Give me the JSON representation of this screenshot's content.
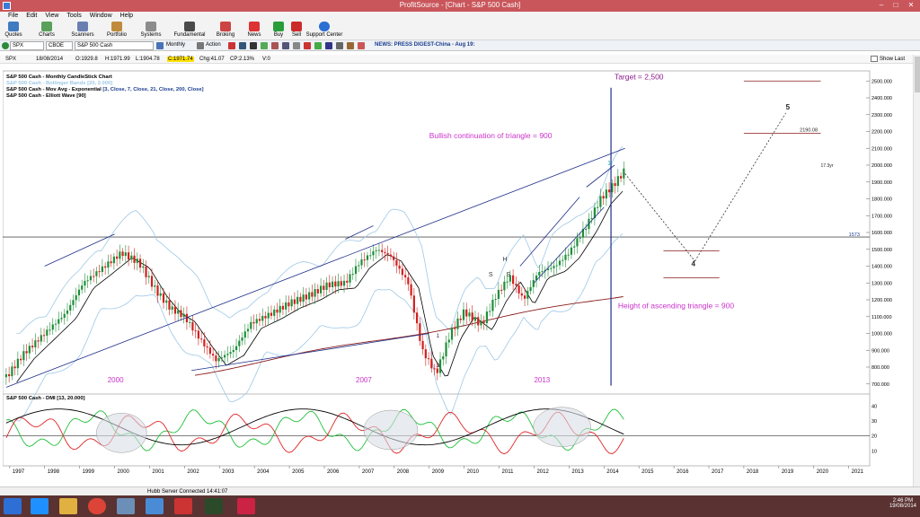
{
  "window": {
    "title": "ProfitSource - [Chart - S&P 500 Cash]",
    "icon": "profitsource-icon"
  },
  "menu": [
    "File",
    "Edit",
    "View",
    "Tools",
    "Window",
    "Help"
  ],
  "toolbar": [
    {
      "label": "Quotes",
      "icon": "quotes-icon"
    },
    {
      "label": "Charts",
      "icon": "charts-icon"
    },
    {
      "label": "Scanners",
      "icon": "scanners-icon"
    },
    {
      "label": "Portfolio",
      "icon": "portfolio-icon"
    },
    {
      "label": "Systems",
      "icon": "systems-icon"
    },
    {
      "label": "Fundamental",
      "icon": "fundamental-icon"
    },
    {
      "label": "Broking",
      "icon": "broking-icon"
    },
    {
      "label": "News",
      "icon": "news-icon"
    },
    {
      "label": "Buy",
      "icon": "buy-icon"
    },
    {
      "label": "Sell",
      "icon": "sell-icon"
    },
    {
      "label": "Support Center",
      "icon": "help-icon"
    }
  ],
  "addressbar": {
    "symbol": "SPX",
    "exchange": "CBOE",
    "name": "S&P 500 Cash",
    "interval": "Monthly",
    "action": "Action",
    "news": "NEWS: PRESS DIGEST-China - Aug 19:"
  },
  "infostrip": {
    "symbol": "SPX",
    "date": "18/08/2014",
    "open": "O:1929.8",
    "high": "H:1971.99",
    "low": "L:1904.78",
    "close": "C:1971.74",
    "change": "Chg:41.07",
    "changepct": "CP:2.13%",
    "volume": "V:0",
    "show_last": "Show Last"
  },
  "legend": [
    {
      "text": "S&P 500 Cash - Monthly CandleStick Chart",
      "color": "#000000"
    },
    {
      "text": "S&P 500 Cash - Bollinger Bands [20, 2.000]",
      "color": "#9ec8e6"
    },
    {
      "text": "S&P 500 Cash - Mov Avg - Exponential",
      "color": "#000000",
      "params": "[3, Close, 7, Close, 21, Close, 200, Close]"
    },
    {
      "text": "S&P 500 Cash - Elliott Wave [90]",
      "color": "#000000"
    }
  ],
  "annotations": {
    "target": "Target = 2,500",
    "bullish": "Bullish continuation of triangle = 900",
    "height": "Height of ascending triangle = 900",
    "y2000": "2000",
    "y2007": "2007",
    "y2013": "2013",
    "h": "H",
    "s1": "S",
    "s2": "S",
    "wave1": "1",
    "wave4": "4",
    "wave5": "5",
    "waveI": "1",
    "waveII": "2",
    "level2190": "2190.08",
    "level1573": "1573",
    "timecount": "17.3yr"
  },
  "oscillator": {
    "title": "S&P 500 Cash - DMI [13, 20.000]"
  },
  "colors": {
    "accent": "#cc33cc",
    "target": "#8b1c8b",
    "candle_up": "#1e8f3a",
    "candle_down": "#d0201d"
  },
  "chart_data": {
    "type": "candlestick",
    "x_labels": [
      "1997",
      "1998",
      "1999",
      "2000",
      "2001",
      "2002",
      "2003",
      "2004",
      "2005",
      "2006",
      "2007",
      "2008",
      "2009",
      "2010",
      "2011",
      "2012",
      "2013",
      "2014",
      "2015",
      "2016",
      "2017",
      "2018",
      "2019",
      "2020",
      "2021"
    ],
    "y_ticks": [
      700,
      800,
      900,
      1000,
      1100,
      1200,
      1300,
      1400,
      1500,
      1600,
      1700,
      1800,
      1900,
      2000,
      2100,
      2200,
      2300,
      2400,
      2500
    ],
    "y_tick_labels": [
      "700.000",
      "800.000",
      "900.000",
      "1000.000",
      "1100.000",
      "1200.000",
      "1300.000",
      "1400.000",
      "1500.000",
      "1600.000",
      "1700.000",
      "1800.000",
      "1900.000",
      "2000.000",
      "2100.000",
      "2200.000",
      "2300.000",
      "2400.000",
      "2500.000"
    ],
    "ylim": [
      640,
      2560
    ],
    "close_path": [
      {
        "x": 1996.9,
        "y": 740
      },
      {
        "x": 1997.4,
        "y": 880
      },
      {
        "x": 1998.0,
        "y": 1000
      },
      {
        "x": 1998.6,
        "y": 1120
      },
      {
        "x": 1999.1,
        "y": 1300
      },
      {
        "x": 1999.6,
        "y": 1380
      },
      {
        "x": 2000.2,
        "y": 1480
      },
      {
        "x": 2000.7,
        "y": 1420
      },
      {
        "x": 2001.2,
        "y": 1250
      },
      {
        "x": 2001.6,
        "y": 1150
      },
      {
        "x": 2002.0,
        "y": 1100
      },
      {
        "x": 2002.5,
        "y": 950
      },
      {
        "x": 2002.9,
        "y": 840
      },
      {
        "x": 2003.4,
        "y": 900
      },
      {
        "x": 2003.9,
        "y": 1060
      },
      {
        "x": 2004.5,
        "y": 1120
      },
      {
        "x": 2005.0,
        "y": 1180
      },
      {
        "x": 2005.6,
        "y": 1230
      },
      {
        "x": 2006.1,
        "y": 1290
      },
      {
        "x": 2006.6,
        "y": 1300
      },
      {
        "x": 2007.0,
        "y": 1420
      },
      {
        "x": 2007.5,
        "y": 1500
      },
      {
        "x": 2007.9,
        "y": 1460
      },
      {
        "x": 2008.4,
        "y": 1300
      },
      {
        "x": 2008.8,
        "y": 900
      },
      {
        "x": 2009.2,
        "y": 760
      },
      {
        "x": 2009.6,
        "y": 1000
      },
      {
        "x": 2010.0,
        "y": 1130
      },
      {
        "x": 2010.5,
        "y": 1050
      },
      {
        "x": 2010.9,
        "y": 1220
      },
      {
        "x": 2011.3,
        "y": 1340
      },
      {
        "x": 2011.7,
        "y": 1200
      },
      {
        "x": 2012.1,
        "y": 1360
      },
      {
        "x": 2012.6,
        "y": 1400
      },
      {
        "x": 2013.0,
        "y": 1480
      },
      {
        "x": 2013.5,
        "y": 1640
      },
      {
        "x": 2013.9,
        "y": 1800
      },
      {
        "x": 2014.3,
        "y": 1890
      },
      {
        "x": 2014.6,
        "y": 1971
      }
    ],
    "osc_y_ticks": [
      10,
      20,
      30,
      40
    ],
    "osc_ylim": [
      0,
      48
    ]
  }
}
